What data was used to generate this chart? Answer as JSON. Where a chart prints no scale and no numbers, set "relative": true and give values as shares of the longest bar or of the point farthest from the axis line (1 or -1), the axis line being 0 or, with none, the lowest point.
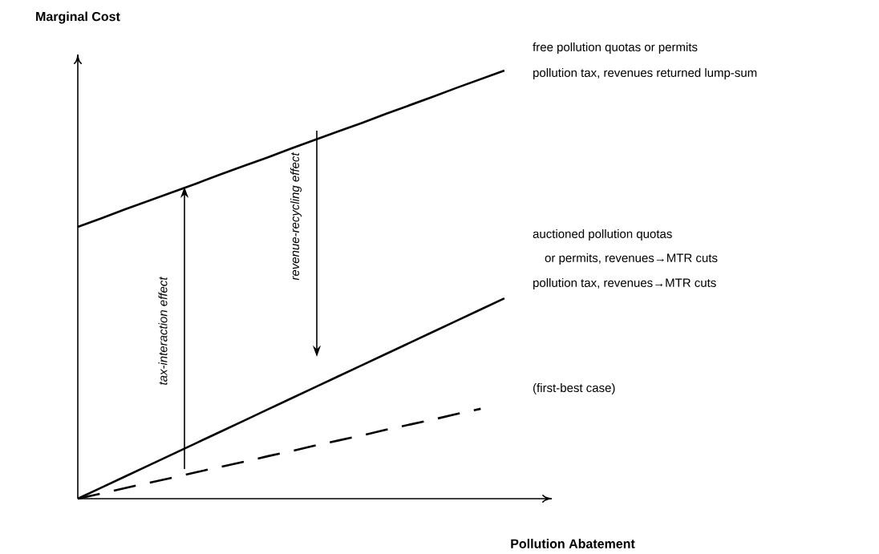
{
  "chart_data": {
    "type": "line",
    "relative": true,
    "tick_labels": false,
    "marker": "none",
    "xlabel": "Pollution Abatement",
    "ylabel": "Marginal Cost",
    "categories": [
      null,
      null,
      null,
      null,
      null,
      null,
      null,
      null,
      null,
      null,
      null,
      null,
      null,
      null,
      null,
      null,
      null,
      null,
      null,
      null,
      null
    ],
    "annotations": [
      "free pollution quotas or permits",
      "pollution tax, revenues returned lump-sum",
      "auctioned pollution quotas",
      "or permits, revenues→MTR cuts",
      "pollution tax, revenues→MTR cuts",
      "(first-best case)",
      "tax-interaction effect",
      "revenue-recycling effect"
    ],
    "series": [
      {
        "color": "#000000",
        "line_style": "solid",
        "values": [
          0.635,
          0.655,
          0.676,
          0.696,
          0.716,
          0.736,
          0.757,
          0.777,
          0.797,
          0.818,
          0.838,
          0.858,
          0.878,
          0.899,
          0.919,
          0.939,
          0.96,
          0.98,
          1.0,
          null,
          null
        ]
      },
      {
        "color": "#000000",
        "line_style": "solid",
        "values": [
          0,
          0.026,
          0.052,
          0.078,
          0.104,
          0.13,
          0.156,
          0.182,
          0.208,
          0.234,
          0.26,
          0.286,
          0.312,
          0.338,
          0.364,
          0.39,
          0.416,
          0.442,
          0.468,
          null,
          null
        ]
      },
      {
        "color": "#000000",
        "line_style": "dashed",
        "values": [
          0,
          0.012,
          0.025,
          0.037,
          0.049,
          0.062,
          0.074,
          0.086,
          0.099,
          0.111,
          0.124,
          0.136,
          0.148,
          0.161,
          0.173,
          0.185,
          0.198,
          0.21,
          null,
          null,
          null
        ]
      }
    ]
  }
}
